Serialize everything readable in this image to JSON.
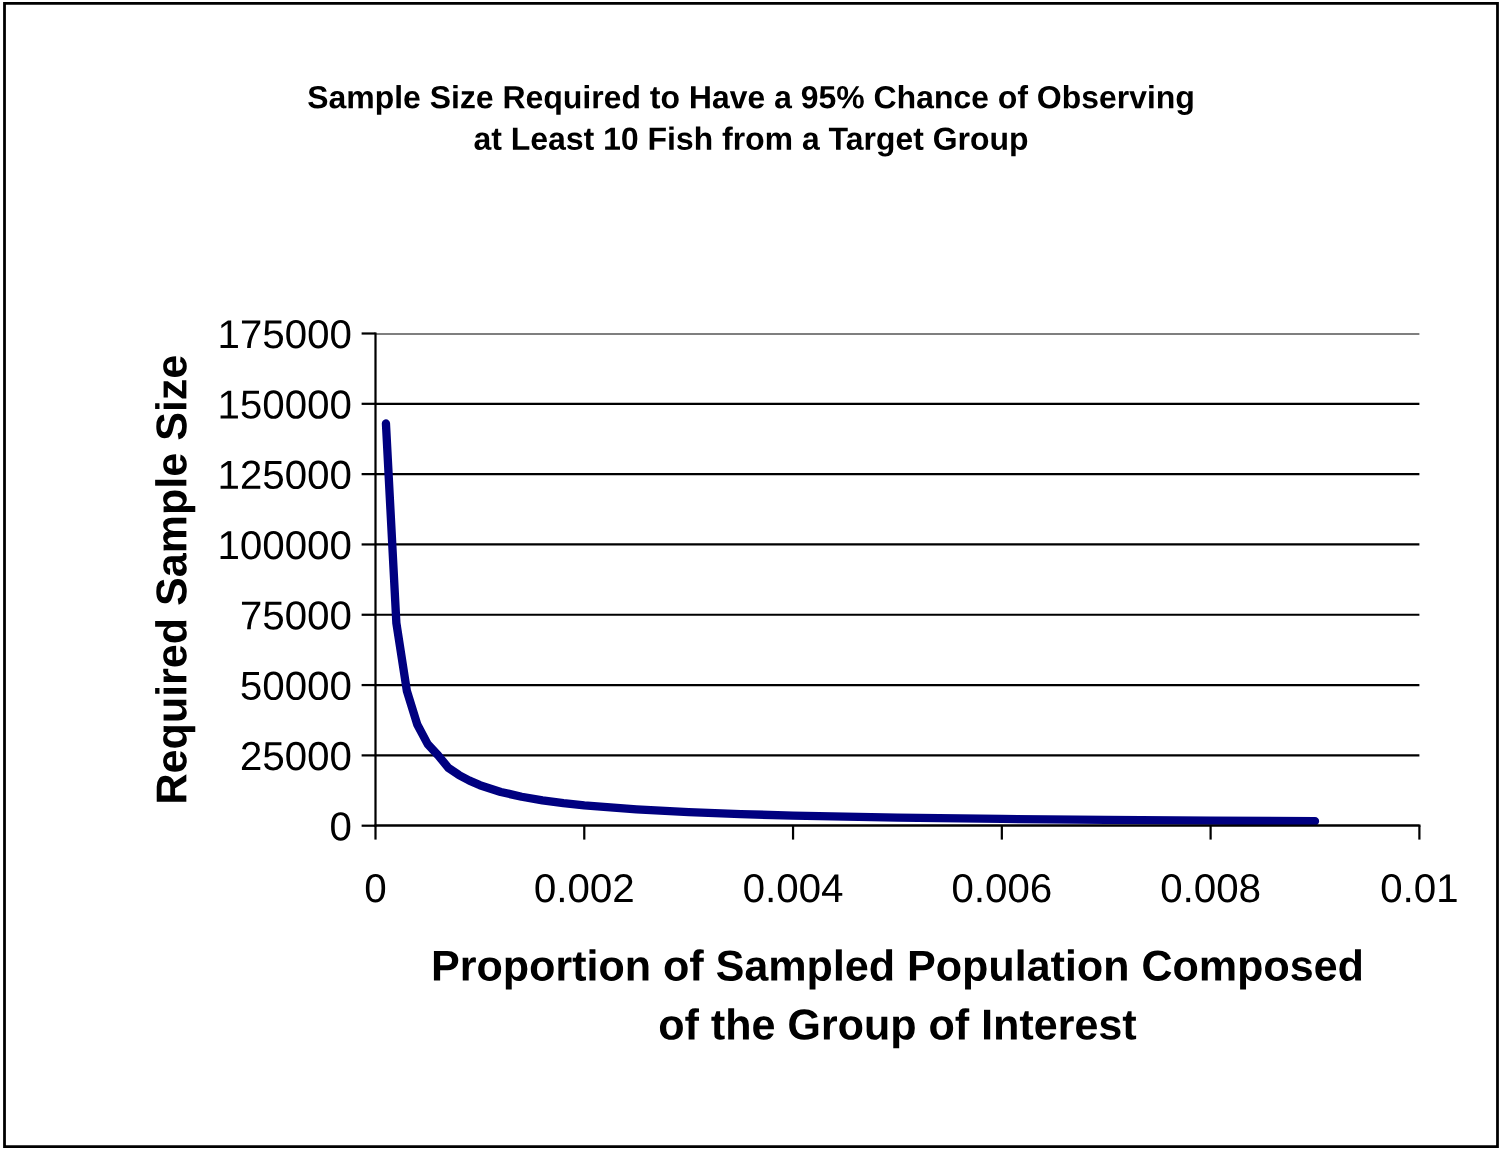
{
  "chart_data": {
    "type": "line",
    "title": "Sample Size Required to Have a 95% Chance of Observing\nat Least 10 Fish from a Target Group",
    "xlabel": "Proportion of Sampled Population Composed\nof the Group of Interest",
    "ylabel": "Required Sample Size",
    "x": [
      0.0001,
      0.0002,
      0.0003,
      0.0004,
      0.0005,
      0.0006,
      0.0007,
      0.0008,
      0.0009,
      0.001,
      0.0012,
      0.0014,
      0.0016,
      0.0018,
      0.002,
      0.0025,
      0.003,
      0.0035,
      0.004,
      0.005,
      0.006,
      0.007,
      0.008,
      0.009
    ],
    "series": [
      {
        "color": "#000080",
        "values": [
          143000,
          72000,
          48000,
          36000,
          29000,
          25000,
          20500,
          18000,
          16000,
          14400,
          12000,
          10300,
          9000,
          8000,
          7200,
          5800,
          4800,
          4100,
          3600,
          2900,
          2400,
          2050,
          1800,
          1600
        ]
      }
    ],
    "xlim": [
      0,
      0.01
    ],
    "xticks": [
      0,
      0.002,
      0.004,
      0.006,
      0.008,
      0.01
    ],
    "ylim": [
      0,
      175000
    ],
    "yticks": [
      0,
      25000,
      50000,
      75000,
      100000,
      125000,
      150000,
      175000
    ],
    "grid": "y",
    "marker": "none",
    "line_style": "solid"
  }
}
